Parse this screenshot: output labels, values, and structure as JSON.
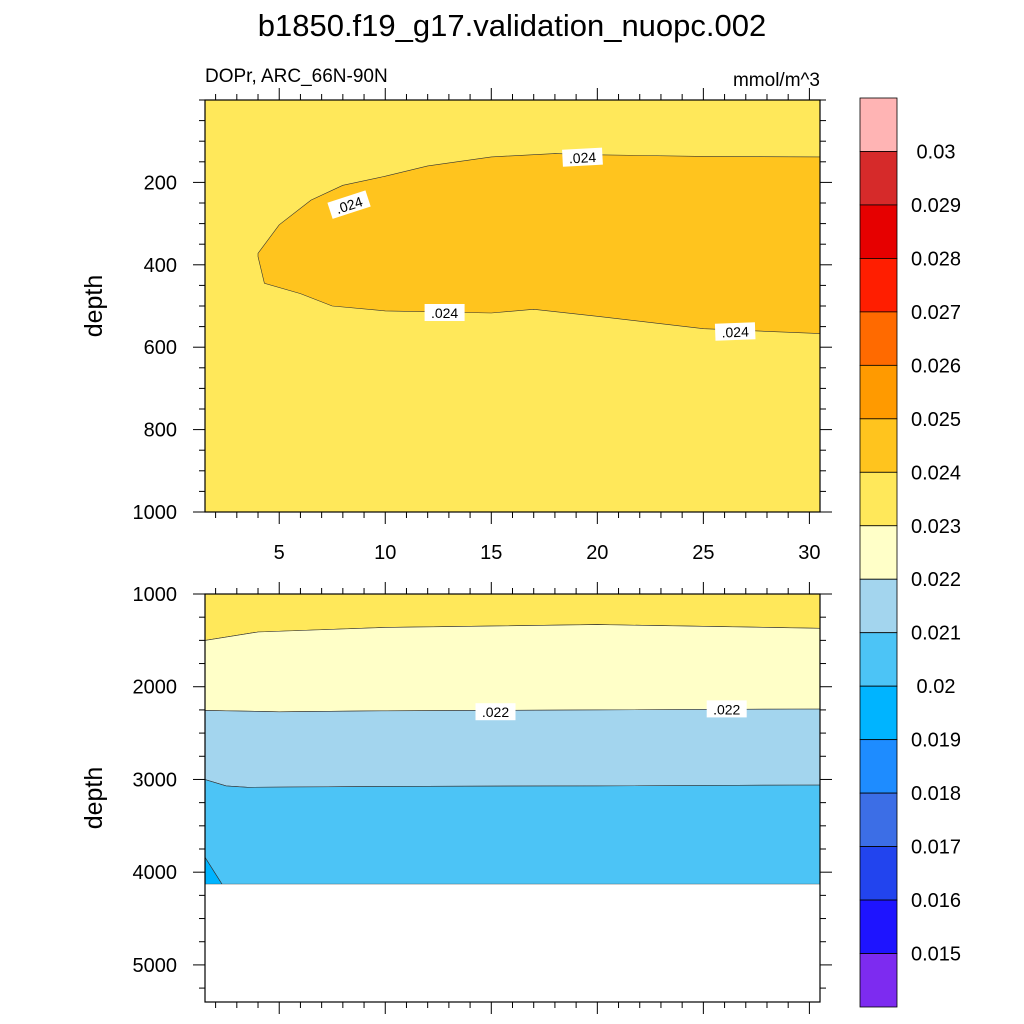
{
  "chart_data": {
    "type": "heatmap",
    "title": "b1850.f19_g17.validation_nuopc.002",
    "variable_label": "DOPr, ARC_66N-90N",
    "units_label": "mmol/m^3",
    "x_range": [
      1.5,
      30.5
    ],
    "x_ticks": [
      5,
      10,
      15,
      20,
      25,
      30
    ],
    "upper": {
      "ylabel": "depth",
      "ylim": [
        0,
        1000
      ],
      "y_ticks": [
        200,
        400,
        600,
        800,
        1000
      ],
      "contour_labels": [
        {
          "text": ".024",
          "x": 19.3,
          "y": 140,
          "angle": -3
        },
        {
          "text": ".024",
          "x": 8.3,
          "y": 255,
          "angle": -18
        },
        {
          "text": ".024",
          "x": 12.8,
          "y": 517,
          "angle": 0
        },
        {
          "text": ".024",
          "x": 26.5,
          "y": 563,
          "angle": -2
        }
      ],
      "regions": [
        {
          "name": "band-0.023-0.024",
          "color": "#FFE85A",
          "polygon": [
            [
              1.5,
              0
            ],
            [
              30.5,
              0
            ],
            [
              30.5,
              1000
            ],
            [
              1.5,
              1000
            ]
          ]
        },
        {
          "name": "band-0.024-0.025",
          "color": "#FFC41E",
          "polygon": [
            [
              30.5,
              138
            ],
            [
              25,
              137
            ],
            [
              20,
              133
            ],
            [
              18,
              130
            ],
            [
              15,
              138
            ],
            [
              12,
              160
            ],
            [
              10,
              185
            ],
            [
              8,
              207
            ],
            [
              6.5,
              243
            ],
            [
              5,
              303
            ],
            [
              4,
              372
            ],
            [
              4,
              380
            ],
            [
              4.3,
              445
            ],
            [
              6,
              470
            ],
            [
              7.5,
              500
            ],
            [
              10,
              512
            ],
            [
              15,
              517
            ],
            [
              17,
              508
            ],
            [
              20,
              525
            ],
            [
              25,
              555
            ],
            [
              30.5,
              567
            ]
          ]
        }
      ]
    },
    "lower": {
      "ylabel": "depth",
      "ylim": [
        1000,
        5400
      ],
      "y_ticks": [
        1000,
        2000,
        3000,
        4000,
        5000
      ],
      "contour_labels": [
        {
          "text": ".022",
          "x": 15.2,
          "y": 2275,
          "angle": 0
        },
        {
          "text": ".022",
          "x": 26.1,
          "y": 2245,
          "angle": 0
        }
      ],
      "regions": [
        {
          "name": "band-0.023-0.024",
          "color": "#FFE85A",
          "polygon": [
            [
              1.5,
              1000
            ],
            [
              30.5,
              1000
            ],
            [
              30.5,
              1370
            ],
            [
              20,
              1330
            ],
            [
              10,
              1360
            ],
            [
              4,
              1410
            ],
            [
              1.5,
              1500
            ]
          ]
        },
        {
          "name": "band-0.022-0.023",
          "color": "#FFFFC8",
          "polygon": [
            [
              1.5,
              1500
            ],
            [
              4,
              1410
            ],
            [
              10,
              1360
            ],
            [
              20,
              1330
            ],
            [
              30.5,
              1370
            ],
            [
              30.5,
              2240
            ],
            [
              20,
              2250
            ],
            [
              10,
              2260
            ],
            [
              5,
              2270
            ],
            [
              1.5,
              2255
            ]
          ]
        },
        {
          "name": "band-0.021-0.022",
          "color": "#A3D5EE",
          "polygon": [
            [
              1.5,
              2255
            ],
            [
              5,
              2270
            ],
            [
              10,
              2260
            ],
            [
              20,
              2250
            ],
            [
              30.5,
              2240
            ],
            [
              30.5,
              3060
            ],
            [
              20,
              3070
            ],
            [
              10,
              3075
            ],
            [
              3.5,
              3085
            ],
            [
              2.5,
              3070
            ],
            [
              1.5,
              3000
            ]
          ]
        },
        {
          "name": "band-0.020-0.021",
          "color": "#4CC4F6",
          "polygon": [
            [
              1.5,
              3000
            ],
            [
              2.5,
              3070
            ],
            [
              3.5,
              3085
            ],
            [
              10,
              3075
            ],
            [
              20,
              3070
            ],
            [
              30.5,
              3060
            ],
            [
              30.5,
              4130
            ],
            [
              2.3,
              4130
            ],
            [
              1.5,
              3840
            ]
          ]
        },
        {
          "name": "band-0.019-0.020",
          "color": "#00B4FF",
          "polygon": [
            [
              1.5,
              3840
            ],
            [
              2.3,
              4130
            ],
            [
              1.5,
              4130
            ]
          ]
        }
      ],
      "missing_below": 4130
    },
    "colorbar": {
      "labels": [
        "0.03",
        "0.029",
        "0.028",
        "0.027",
        "0.026",
        "0.025",
        "0.024",
        "0.023",
        "0.022",
        "0.021",
        "0.02",
        "0.019",
        "0.018",
        "0.017",
        "0.016",
        "0.015"
      ],
      "colors_top_to_bottom": [
        "#FFB4B4",
        "#D62A2A",
        "#E60000",
        "#FF1E00",
        "#FF6A00",
        "#FF9A00",
        "#FFC41E",
        "#FFE85A",
        "#FFFFC8",
        "#A3D5EE",
        "#4CC4F6",
        "#00B4FF",
        "#1E8CFF",
        "#3C6EE6",
        "#2244EE",
        "#1E14FF",
        "#7D2BF0"
      ]
    }
  }
}
